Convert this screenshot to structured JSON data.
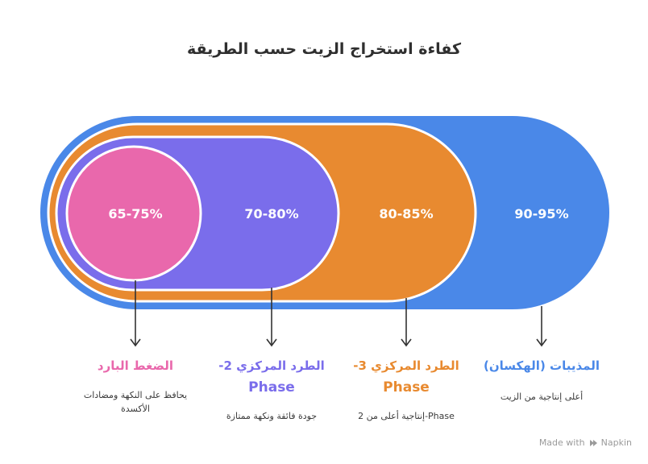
{
  "title": "كفاءة استخراج الزيت حسب الطريقة",
  "colors": {
    "blue": "#4A88E8",
    "orange": "#E88A30",
    "purple": "#7A6DEB",
    "pink": "#E968AC"
  },
  "methods": [
    {
      "range": "65-75%",
      "label": "الضغط البارد",
      "label2": "",
      "description": "يحافظ على النكهة ومضادات الأكسدة",
      "color": "#E968AC"
    },
    {
      "range": "70-80%",
      "label": "-الطرد المركزي 2",
      "label2": "Phase",
      "description": "جودة فائقة ونكهة ممتازة",
      "color": "#7A6DEB"
    },
    {
      "range": "80-85%",
      "label": "-الطرد المركزي 3",
      "label2": "Phase",
      "description": "Phase-إنتاجية أعلى من 2",
      "color": "#E88A30"
    },
    {
      "range": "90-95%",
      "label": "المذيبات (الهكسان)",
      "label2": "",
      "description": "أعلى إنتاجية من الزيت",
      "color": "#4A88E8"
    }
  ],
  "footer": {
    "made_with": "Made with",
    "brand": "Napkin"
  }
}
